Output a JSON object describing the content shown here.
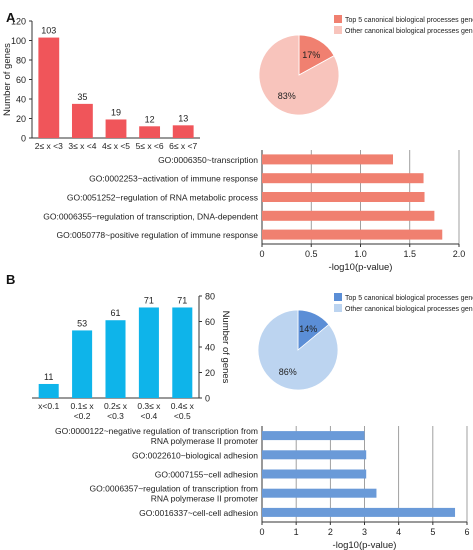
{
  "panels": [
    {
      "label": "A"
    },
    {
      "label": "B"
    }
  ],
  "chart_data": [
    {
      "panel": "A",
      "type": "bar",
      "title": "",
      "xlabel": "",
      "ylabel": "Number of genes",
      "categories": [
        "2≤  x <3",
        "3≤  x <4",
        "4≤  x <5",
        "5≤  x <6",
        "6≤  x <7"
      ],
      "values": [
        103,
        35,
        19,
        12,
        13
      ],
      "ylim": [
        0,
        120
      ],
      "yticks": [
        0,
        20,
        40,
        60,
        80,
        100,
        120
      ],
      "color": "#f0555a",
      "grid": false
    },
    {
      "panel": "A",
      "type": "pie",
      "labels": [
        "Top 5 canonical biological processes genes",
        "Other canonical biological processes genes"
      ],
      "values": [
        17,
        83
      ],
      "value_labels": [
        "17%",
        "83%"
      ],
      "colors": [
        "#f08070",
        "#f8c4bc"
      ],
      "legend": "top-right"
    },
    {
      "panel": "A",
      "type": "bar",
      "orientation": "horizontal",
      "xlabel": "-log10(p-value)",
      "ylabel": "",
      "categories": [
        "GO:0006350~transcription",
        "GO:0002253~activation of immune response",
        "GO:0051252~regulation of RNA metabolic process",
        "GO:0006355~regulation of transcription, DNA-dependent",
        "GO:0050778~positive regulation of immune response"
      ],
      "values": [
        1.33,
        1.64,
        1.65,
        1.75,
        1.83
      ],
      "xlim": [
        0,
        2.0
      ],
      "xticks": [
        "0",
        "0.5",
        "1.0",
        "1.5",
        "2.0"
      ],
      "color": "#f08070",
      "grid": true
    },
    {
      "panel": "B",
      "type": "bar",
      "title": "",
      "xlabel": "",
      "ylabel": "Number of genes",
      "categories": [
        "x<0.1",
        "0.1≤ x\n<0.2",
        "0.2≤ x\n<0.3",
        "0.3≤ x\n<0.4",
        "0.4≤ x\n<0.5"
      ],
      "values": [
        11,
        53,
        61,
        71,
        71
      ],
      "ylim": [
        0,
        80
      ],
      "yticks": [
        0,
        20,
        40,
        60,
        80
      ],
      "y_axis_side": "right",
      "color": "#0eb4ea",
      "grid": false
    },
    {
      "panel": "B",
      "type": "pie",
      "labels": [
        "Top 5 canonical biological processes genes",
        "Other canonical biological processes genes"
      ],
      "values": [
        14,
        86
      ],
      "value_labels": [
        "14%",
        "86%"
      ],
      "colors": [
        "#5b8ed6",
        "#bcd4f0"
      ],
      "legend": "top-right"
    },
    {
      "panel": "B",
      "type": "bar",
      "orientation": "horizontal",
      "xlabel": "-log10(p-value)",
      "ylabel": "",
      "categories": [
        "GO:0000122~negative regulation of transcription from\nRNA polymerase II promoter",
        "GO:0022610~biological adhesion",
        "GO:0007155~cell adhesion",
        "GO:0006357~regulation of transcription from\nRNA polymerase II promoter",
        "GO:0016337~cell-cell adhesion"
      ],
      "values": [
        3.0,
        3.05,
        3.05,
        3.35,
        5.65
      ],
      "xlim": [
        0,
        6
      ],
      "xticks": [
        "0",
        "1",
        "2",
        "3",
        "4",
        "5",
        "6"
      ],
      "color": "#6a9ad8",
      "grid": true
    }
  ]
}
